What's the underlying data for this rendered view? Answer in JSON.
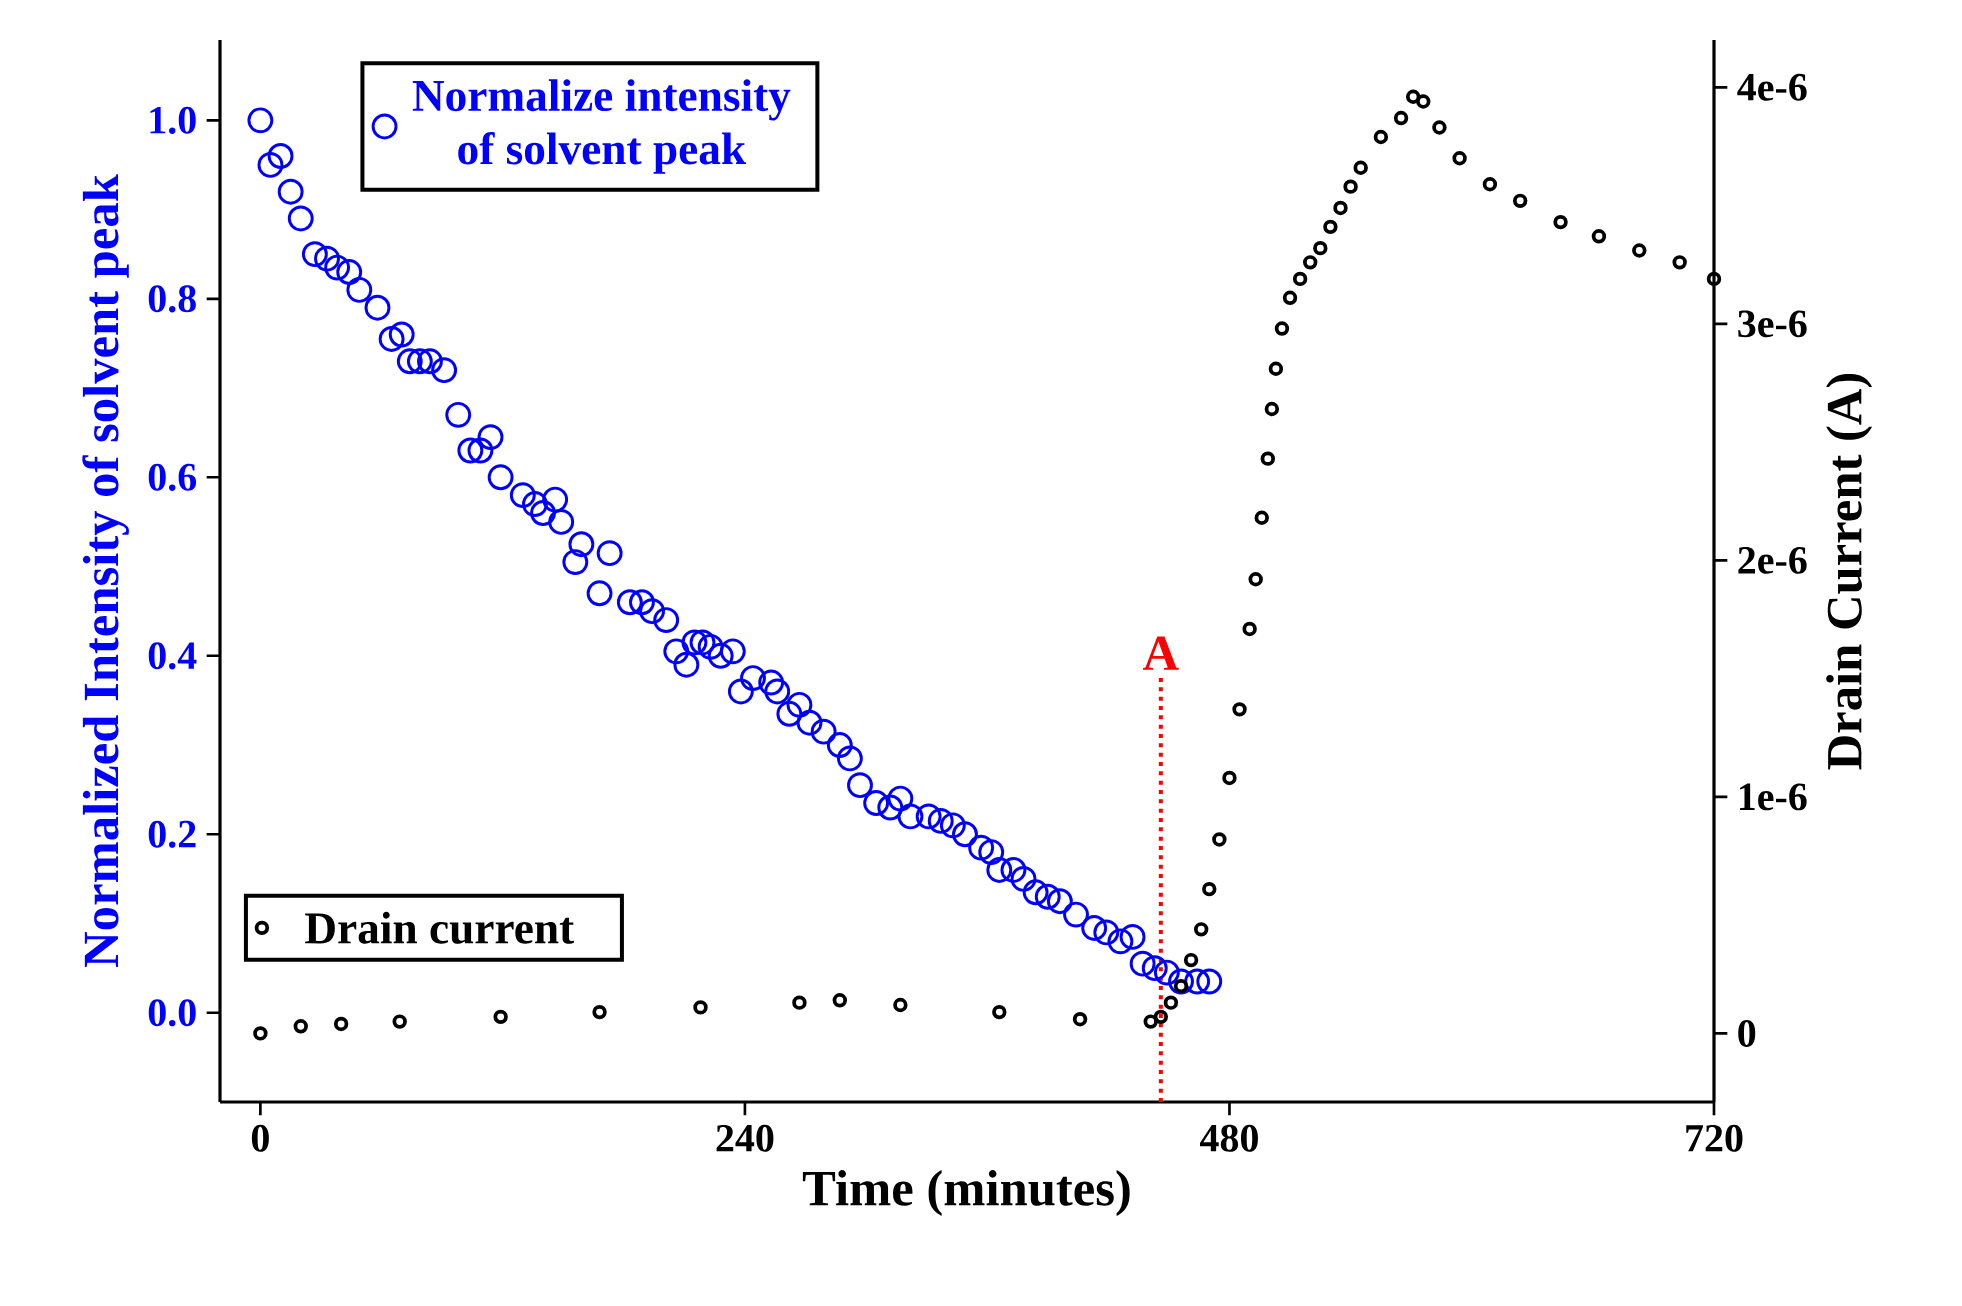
{
  "chart_data": {
    "type": "scatter",
    "xlabel": "Time (minutes)",
    "ylabel": "Normalized Intensity of solvent peak",
    "y2label": "Drain Current (A)",
    "xlim": [
      -20,
      720
    ],
    "xticks": [
      0,
      240,
      480,
      720
    ],
    "ylim": [
      -0.1,
      1.09
    ],
    "yticks": [
      {
        "value": 0,
        "label": "0.0"
      },
      {
        "value": 0.2,
        "label": "0.2"
      },
      {
        "value": 0.4,
        "label": "0.4"
      },
      {
        "value": 0.6,
        "label": "0.6"
      },
      {
        "value": 0.8,
        "label": "0.8"
      },
      {
        "value": 1,
        "label": "1.0"
      }
    ],
    "y2lim": [
      -2.9e-07,
      4.2e-06
    ],
    "y2ticks": [
      0,
      {
        "value": 1e-06,
        "label": "1e-6"
      },
      {
        "value": 2e-06,
        "label": "2e-6"
      },
      {
        "value": 3e-06,
        "label": "3e-6"
      },
      {
        "value": 4e-06,
        "label": "4e-6"
      }
    ],
    "legend": "top left",
    "marker": "circle",
    "ref_lines": [
      {
        "axis": "x",
        "value": 446,
        "label": "A",
        "color": "#ff0000",
        "line_style": "dotted"
      }
    ],
    "series": [
      {
        "name": "Normalize intensity of solvent peak",
        "color": "#0000ff",
        "x": [
          0,
          5,
          10,
          15,
          20,
          27,
          33,
          38,
          44,
          49,
          58,
          65,
          70,
          74,
          79,
          84,
          91,
          98,
          104,
          109,
          114,
          119,
          130,
          136,
          140,
          146,
          149,
          156,
          159,
          168,
          173,
          183,
          189,
          194,
          201,
          206,
          211,
          215,
          219,
          223,
          228,
          234,
          238,
          244,
          253,
          256,
          262,
          267,
          272,
          279,
          287,
          292,
          297,
          305,
          312,
          317,
          322,
          331,
          337,
          343,
          349,
          357,
          362,
          366,
          373,
          378,
          384,
          390,
          396,
          404,
          413,
          419,
          426,
          432,
          437,
          443,
          449,
          456,
          464,
          470
        ],
        "values": [
          1.0,
          0.95,
          0.96,
          0.92,
          0.89,
          0.85,
          0.845,
          0.835,
          0.83,
          0.81,
          0.79,
          0.755,
          0.76,
          0.73,
          0.73,
          0.73,
          0.72,
          0.67,
          0.63,
          0.63,
          0.645,
          0.6,
          0.58,
          0.57,
          0.56,
          0.575,
          0.55,
          0.505,
          0.525,
          0.47,
          0.515,
          0.46,
          0.46,
          0.45,
          0.44,
          0.405,
          0.39,
          0.415,
          0.415,
          0.41,
          0.4,
          0.405,
          0.36,
          0.375,
          0.37,
          0.36,
          0.335,
          0.345,
          0.325,
          0.315,
          0.3,
          0.285,
          0.255,
          0.235,
          0.23,
          0.24,
          0.22,
          0.22,
          0.215,
          0.21,
          0.2,
          0.185,
          0.18,
          0.16,
          0.16,
          0.15,
          0.135,
          0.13,
          0.125,
          0.11,
          0.095,
          0.09,
          0.08,
          0.085,
          0.055,
          0.05,
          0.045,
          0.035,
          0.035,
          0.035
        ]
      },
      {
        "name": "Drain current",
        "color": "#000000",
        "axis": "y2",
        "x": [
          0,
          20,
          40,
          69,
          119,
          168,
          218,
          267,
          287,
          317,
          366,
          406,
          441,
          446,
          451,
          456,
          461,
          466,
          470,
          475,
          480,
          485,
          490,
          493,
          496,
          499,
          501,
          503,
          506,
          510,
          515,
          520,
          525,
          530,
          535,
          540,
          545,
          555,
          565,
          571,
          576,
          584,
          594,
          609,
          624,
          644,
          663,
          683,
          703,
          720
        ],
        "values": [
          0,
          3e-08,
          4e-08,
          5e-08,
          7e-08,
          9e-08,
          1.1e-07,
          1.3e-07,
          1.4e-07,
          1.2e-07,
          9e-08,
          6e-08,
          5e-08,
          7e-08,
          1.3e-07,
          2e-07,
          3.1e-07,
          4.4e-07,
          6.1e-07,
          8.2e-07,
          1.08e-06,
          1.37e-06,
          1.71e-06,
          1.92e-06,
          2.18e-06,
          2.43e-06,
          2.64e-06,
          2.81e-06,
          2.98e-06,
          3.11e-06,
          3.19e-06,
          3.26e-06,
          3.32e-06,
          3.41e-06,
          3.49e-06,
          3.58e-06,
          3.66e-06,
          3.79e-06,
          3.87e-06,
          3.96e-06,
          3.94e-06,
          3.83e-06,
          3.7e-06,
          3.59e-06,
          3.52e-06,
          3.43e-06,
          3.37e-06,
          3.31e-06,
          3.26e-06,
          3.19e-06
        ]
      }
    ]
  }
}
